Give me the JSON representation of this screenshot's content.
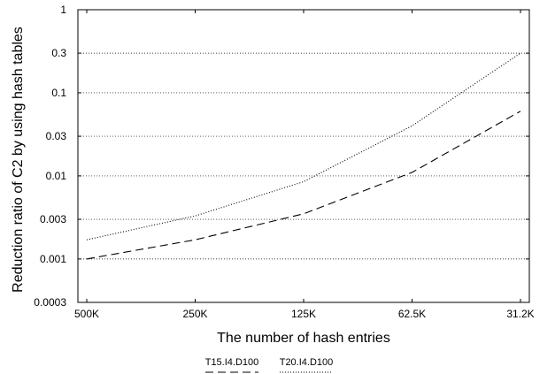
{
  "chart_data": {
    "type": "line",
    "xlabel": "The number of hash entries",
    "ylabel": "Reduction ratio of C2 by using hash tables",
    "x_ticks": [
      "500K",
      "250K",
      "125K",
      "62.5K",
      "31.2K"
    ],
    "y_scale": "log",
    "ylim": [
      0.0003,
      1
    ],
    "y_ticks": [
      1,
      0.3,
      0.1,
      0.03,
      0.01,
      0.003,
      0.001,
      0.0003
    ],
    "y_tick_labels": [
      "1",
      "0.3",
      "0.1",
      "0.03",
      "0.01",
      "0.003",
      "0.001",
      "0.0003"
    ],
    "grid": "horizontal dotted",
    "legend_position": "bottom",
    "series": [
      {
        "name": "T15.I4.D100",
        "style": "dashed",
        "color": "#000000",
        "x": [
          "500K",
          "250K",
          "125K",
          "62.5K",
          "31.2K"
        ],
        "y": [
          0.001,
          0.0017,
          0.0035,
          0.011,
          0.06
        ]
      },
      {
        "name": "T20.I4.D100",
        "style": "dotted",
        "color": "#000000",
        "x": [
          "500K",
          "250K",
          "125K",
          "62.5K",
          "31.2K"
        ],
        "y": [
          0.0017,
          0.0033,
          0.0085,
          0.04,
          0.3
        ]
      }
    ]
  }
}
